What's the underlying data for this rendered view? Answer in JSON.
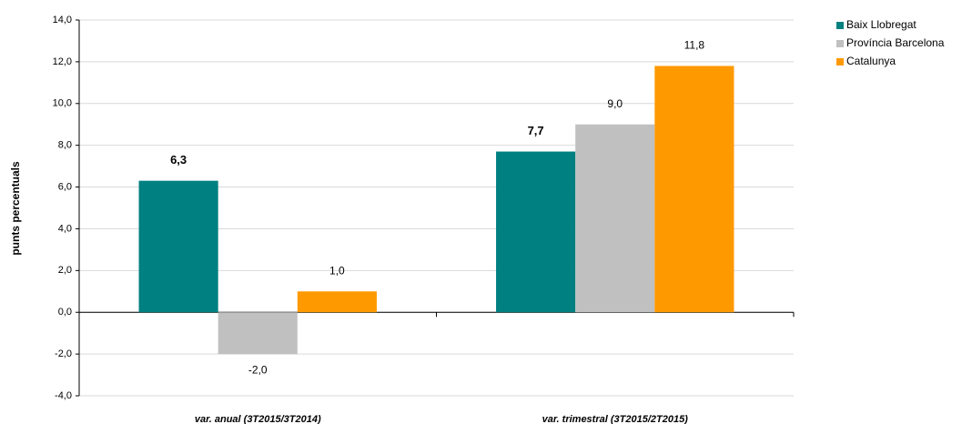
{
  "chart_data": {
    "type": "bar",
    "y_label": "punts percentuals",
    "categories": [
      "var. anual (3T2015/3T2014)",
      "var. trimestral (3T2015/2T2015)"
    ],
    "series": [
      {
        "name": "Baix Llobregat",
        "color": "#008080",
        "values": [
          6.3,
          7.7
        ],
        "value_labels": [
          "6,3",
          "7,7"
        ]
      },
      {
        "name": "Província Barcelona",
        "color": "#c0c0c0",
        "values": [
          -2.0,
          9.0
        ],
        "value_labels": [
          "-2,0",
          "9,0"
        ]
      },
      {
        "name": "Catalunya",
        "color": "#ff9900",
        "values": [
          1.0,
          11.8
        ],
        "value_labels": [
          "1,0",
          "11,8"
        ]
      }
    ],
    "ylim": [
      -4,
      14
    ],
    "yticks": [
      {
        "value": -4,
        "label": "-4,0"
      },
      {
        "value": -2,
        "label": "-2,0"
      },
      {
        "value": 0,
        "label": "0,0"
      },
      {
        "value": 2,
        "label": "2,0"
      },
      {
        "value": 4,
        "label": "4,0"
      },
      {
        "value": 6,
        "label": "6,0"
      },
      {
        "value": 8,
        "label": "8,0"
      },
      {
        "value": 10,
        "label": "10,0"
      },
      {
        "value": 12,
        "label": "12,0"
      },
      {
        "value": 14,
        "label": "14,0"
      }
    ],
    "grid": true,
    "legend": "right"
  }
}
